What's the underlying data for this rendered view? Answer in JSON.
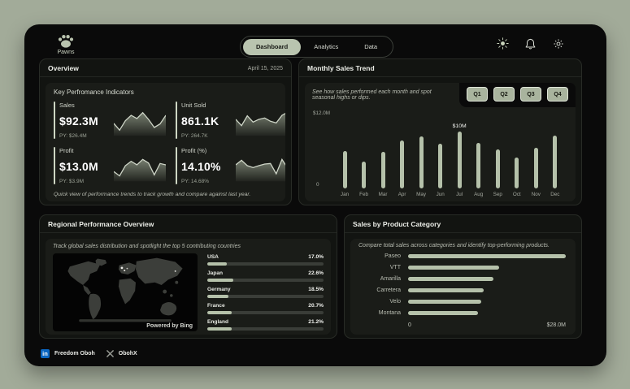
{
  "app": {
    "brand": "Pawns"
  },
  "nav": {
    "tabs": [
      {
        "label": "Dashboard",
        "active": true
      },
      {
        "label": "Analytics",
        "active": false
      },
      {
        "label": "Data",
        "active": false
      }
    ],
    "icons": [
      "theme-sun",
      "notifications-bell",
      "settings-gear"
    ]
  },
  "colors": {
    "accent": "#b5c1aa",
    "accent_button": "#a9b49e",
    "track": "#3a3d38",
    "linkedin_blue": "#0a66c2"
  },
  "overview": {
    "title": "Overview",
    "date": "April 15, 2025",
    "kpi_title": "Key Perfromance Indicators",
    "note": "Quick view of performance trends to track growth and compare against last year.",
    "kpis": [
      {
        "label": "Sales",
        "value": "$92.3M",
        "prior": "PY:  $26.4M",
        "spark": [
          40,
          15,
          50,
          70,
          58,
          80,
          55,
          25,
          38,
          70
        ]
      },
      {
        "label": "Unit Sold",
        "value": "861.1K",
        "prior": "PY: 264.7K",
        "spark": [
          55,
          32,
          68,
          45,
          55,
          60,
          48,
          42,
          70,
          82
        ]
      },
      {
        "label": "Profit",
        "value": "$13.0M",
        "prior": "PY: $3.9M",
        "spark": [
          30,
          14,
          52,
          68,
          55,
          75,
          62,
          18,
          60,
          55
        ]
      },
      {
        "label": "Profit (%)",
        "value": "14.10%",
        "prior": "PY: 14.68%",
        "spark": [
          55,
          72,
          52,
          45,
          52,
          58,
          60,
          22,
          75,
          42
        ]
      }
    ]
  },
  "monthly": {
    "title": "Monthly Sales Trend",
    "subtitle": "See how sales performed each month and spot seasonal highs or dips.",
    "quarter_buttons": [
      "Q1",
      "Q2",
      "Q3",
      "Q4"
    ],
    "chart_data": {
      "type": "bar",
      "categories": [
        "Jan",
        "Feb",
        "Mar",
        "Apr",
        "May",
        "Jun",
        "Jul",
        "Aug",
        "Sep",
        "Oct",
        "Nov",
        "Dec"
      ],
      "values": [
        6.6,
        4.7,
        6.4,
        8.4,
        9.1,
        7.9,
        10.0,
        8.0,
        6.8,
        5.5,
        7.1,
        9.3
      ],
      "unit": "USD millions",
      "ylim": [
        0,
        12
      ],
      "y_top_label": "$12.0M",
      "y_bottom_label": "0",
      "annotation": {
        "category": "Jul",
        "text": "$10M"
      }
    }
  },
  "regional": {
    "title": "Regional Performance Overview",
    "subtitle": "Track global sales distribution and spotlight the top 5 contributing countries",
    "map_attribution": "Powered by Bing",
    "chart_data": {
      "type": "bar",
      "orientation": "horizontal",
      "categories": [
        "USA",
        "Japan",
        "Germany",
        "France",
        "England"
      ],
      "values": [
        17.0,
        22.6,
        18.5,
        20.7,
        21.2
      ],
      "labels": [
        "17.0%",
        "22.6%",
        "18.5%",
        "20.7%",
        "21.2%"
      ],
      "unit": "%",
      "xlim": [
        0,
        100
      ]
    }
  },
  "products": {
    "title": "Sales by Product Category",
    "subtitle": "Compare total sales across categories and identify top-performing products.",
    "chart_data": {
      "type": "bar",
      "orientation": "horizontal",
      "categories": [
        "Paseo",
        "VTT",
        "Amarilla",
        "Carretera",
        "Velo",
        "Montana"
      ],
      "values": [
        28.0,
        16.1,
        15.2,
        13.4,
        13.0,
        12.4
      ],
      "unit": "USD millions",
      "xlim": [
        0,
        28
      ],
      "x_min_label": "0",
      "x_max_label": "$28.0M"
    }
  },
  "footer": {
    "linkedin_label": "Freedom Oboh",
    "x_label": "ObohX"
  }
}
